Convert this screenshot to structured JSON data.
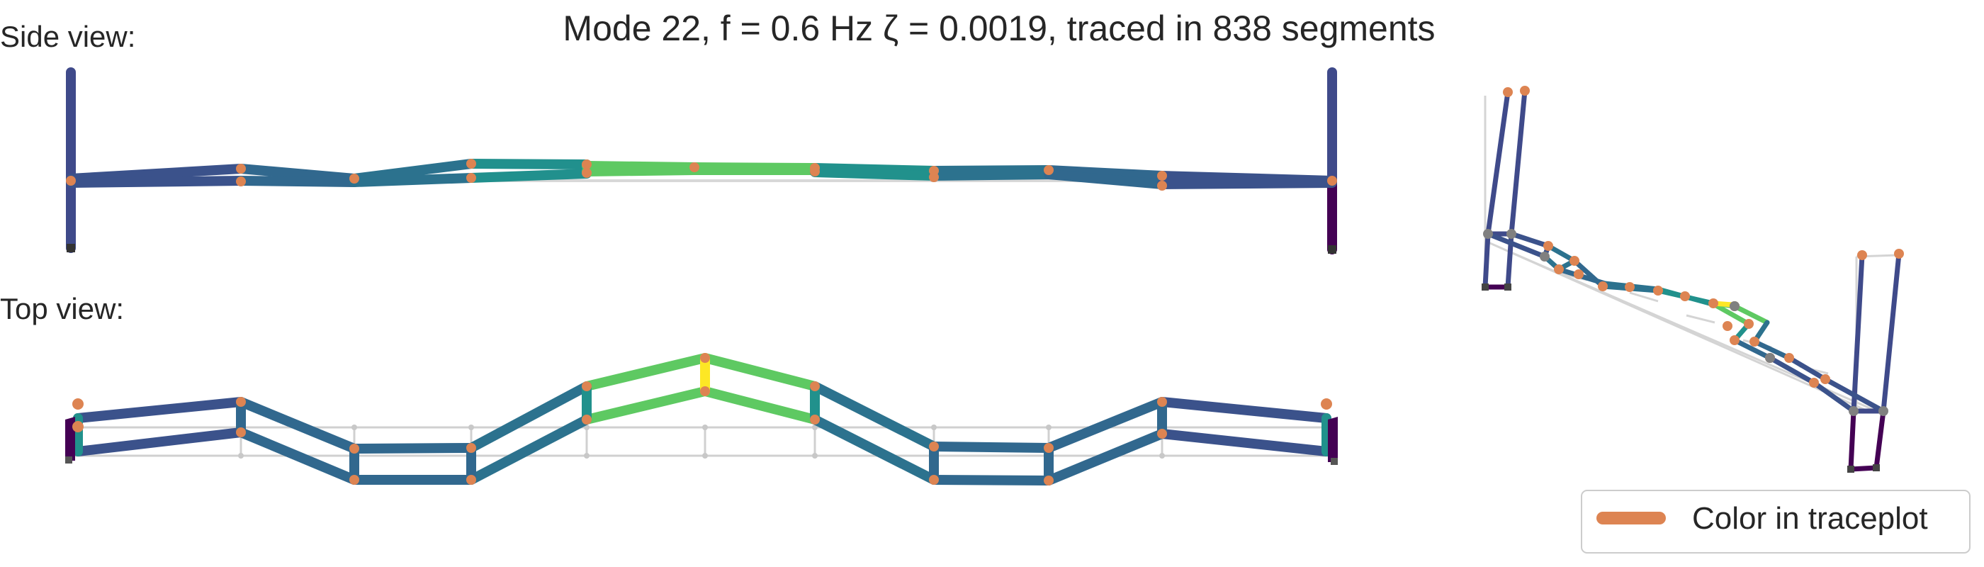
{
  "title": "Mode 22, f = 0.6 Hz   ζ = 0.0019,  traced in 838 segments",
  "side_view_label": "Side view:",
  "top_view_label": "Top view:",
  "legend": {
    "label": "Color in traceplot",
    "swatch_color": "#dd8452"
  },
  "colors": {
    "marker": "#dd8452",
    "undeformed": "#c8c8c8",
    "support_marker": "#333333",
    "node_gray": "#808080",
    "colormap": "viridis"
  }
}
